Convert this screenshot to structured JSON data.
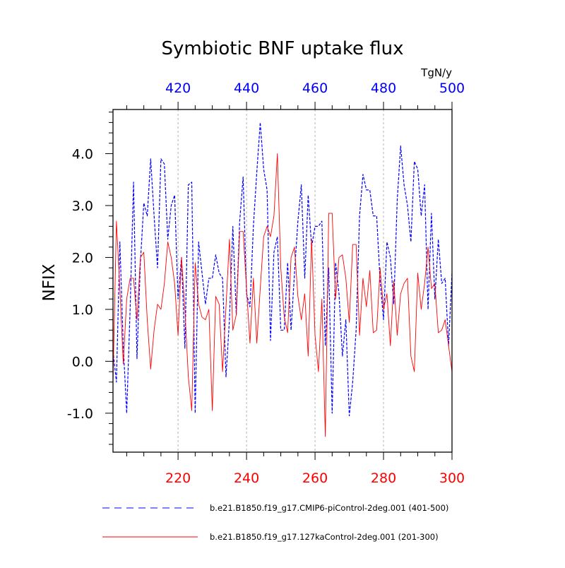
{
  "chart_data": {
    "type": "line",
    "title": "Symbiotic BNF uptake flux",
    "units": "TgN/y",
    "ylabel": "NFIX",
    "ylim": [
      -1.75,
      4.85
    ],
    "y_ticks": [
      -1.0,
      0.0,
      1.0,
      2.0,
      3.0,
      4.0
    ],
    "y_tick_labels": [
      "-1.0",
      "0.0",
      "1.0",
      "2.0",
      "3.0",
      "4.0"
    ],
    "bottom_axis": {
      "range": [
        201,
        300
      ],
      "ticks": [
        220,
        240,
        260,
        280,
        300
      ],
      "labels": [
        "220",
        "240",
        "260",
        "280",
        "300"
      ],
      "color": "#ff0000"
    },
    "top_axis": {
      "range": [
        401,
        500
      ],
      "ticks": [
        420,
        440,
        460,
        480,
        500
      ],
      "labels": [
        "420",
        "440",
        "460",
        "480",
        "500"
      ],
      "color": "#0000ff"
    },
    "gridlines_x": [
      220,
      240,
      260,
      280
    ],
    "series": [
      {
        "name": "b.e21.B1850.f19_g17.CMIP6-piControl-2deg.001 (401-500)",
        "color": "#0000ff",
        "style": "dashed",
        "axis": "top",
        "x_start": 401,
        "values": [
          0.2,
          -0.4,
          2.3,
          0.3,
          -1.0,
          1.0,
          3.45,
          0.05,
          1.9,
          3.05,
          2.8,
          3.9,
          2.8,
          1.8,
          3.9,
          3.8,
          2.35,
          3.0,
          3.2,
          1.2,
          2.0,
          0.25,
          3.4,
          3.45,
          -1.0,
          2.3,
          1.7,
          1.1,
          1.6,
          1.6,
          2.05,
          1.7,
          1.6,
          -0.3,
          0.8,
          2.6,
          0.9,
          2.7,
          3.55,
          1.3,
          1.05,
          2.6,
          3.65,
          4.6,
          3.7,
          3.3,
          0.4,
          2.1,
          2.4,
          0.6,
          0.6,
          1.9,
          0.6,
          1.7,
          2.7,
          3.4,
          1.6,
          3.2,
          2.2,
          2.6,
          2.6,
          2.7,
          0.3,
          1.8,
          -1.0,
          1.9,
          1.3,
          0.1,
          0.8,
          -1.05,
          -0.4,
          0.6,
          2.8,
          3.6,
          3.3,
          3.3,
          2.8,
          2.8,
          1.55,
          0.8,
          2.3,
          2.0,
          1.1,
          3.1,
          4.15,
          3.4,
          3.0,
          2.3,
          3.85,
          3.7,
          2.8,
          3.4,
          1.0,
          2.85,
          1.2,
          2.35,
          1.5,
          1.6,
          0.3,
          1.7
        ]
      },
      {
        "name": "b.e21.B1850.f19_g17.127kaControl-2deg.001 (201-300)",
        "color": "#ff0000",
        "style": "solid",
        "axis": "bottom",
        "x_start": 201,
        "values": [
          -0.4,
          2.7,
          1.4,
          -0.05,
          1.2,
          1.6,
          1.6,
          0.8,
          2.0,
          2.1,
          0.8,
          -0.15,
          0.6,
          1.1,
          1.0,
          1.5,
          2.3,
          2.0,
          1.5,
          0.5,
          2.0,
          1.0,
          -0.3,
          -0.95,
          1.9,
          1.1,
          0.85,
          0.8,
          1.0,
          -0.95,
          1.25,
          1.1,
          -0.2,
          1.05,
          2.35,
          0.6,
          0.9,
          2.5,
          2.5,
          1.4,
          0.35,
          1.6,
          0.35,
          1.4,
          2.4,
          2.6,
          2.4,
          2.8,
          4.0,
          1.8,
          0.85,
          0.55,
          2.0,
          2.2,
          1.25,
          0.8,
          1.3,
          0.1,
          2.35,
          0.5,
          -0.2,
          1.2,
          -1.45,
          2.85,
          2.85,
          1.2,
          2.0,
          2.05,
          1.6,
          0.75,
          2.25,
          2.25,
          0.5,
          1.6,
          1.05,
          1.75,
          0.55,
          0.6,
          1.8,
          1.0,
          1.3,
          0.3,
          1.55,
          0.5,
          1.3,
          1.5,
          1.6,
          0.1,
          -0.2,
          1.7,
          1.0,
          1.5,
          2.2,
          1.4,
          1.5,
          0.55,
          0.6,
          0.8,
          0.3,
          -0.2
        ]
      }
    ],
    "legend_position": "bottom"
  }
}
